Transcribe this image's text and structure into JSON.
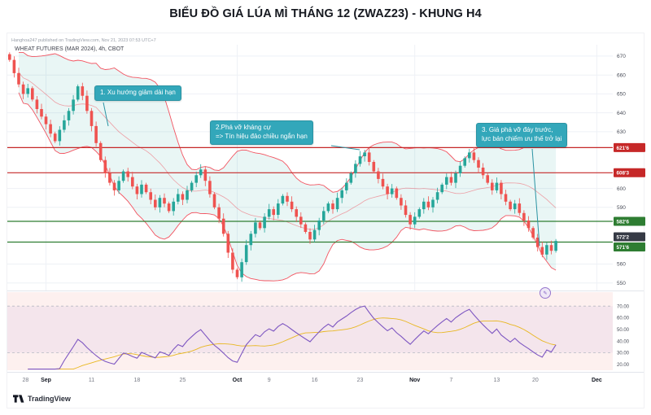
{
  "page": {
    "title": "BIỂU ĐỒ GIÁ LÚA MÌ THÁNG 12 (ZWAZ23) - KHUNG H4"
  },
  "header": {
    "watermark": "Hanghoa247 published on TradingView.com, Nov 21, 2023 07:53 UTC+7",
    "symbol": "WHEAT FUTURES (MAR 2024), 4h, CBOT"
  },
  "footer": {
    "logo_text": "TradingView"
  },
  "annotations": [
    {
      "text_lines": [
        "1. Xu hướng giảm dài hạn"
      ]
    },
    {
      "text_lines": [
        "2.Phá vỡ kháng cự",
        "=> Tín hiệu đảo chiều ngắn hạn"
      ]
    },
    {
      "text_lines": [
        "3. Giá phá vỡ đáy trước,",
        "lực bán chiếm ưu thế trở lại"
      ]
    }
  ],
  "colors": {
    "up": "#26a69a",
    "down": "#ef5350",
    "bb_line": "#f23645",
    "bb_fill": "rgba(38,166,154,0.10)",
    "resistance": "#c62828",
    "support": "#2e7d32",
    "last_price_bg": "#363a45",
    "callout_bg": "#33a7ba",
    "callout_border": "#2b93a3",
    "rsi_line": "#7e57c2",
    "rsi_ma": "#e7b10a",
    "rsi_pane_bg": "#fdf0ef",
    "rsi_band": "rgba(126,87,194,0.07)",
    "grid": "#eef1f6",
    "axis_text": "#4a4e59"
  },
  "chart_data": {
    "type": "candlestick",
    "title": "WHEAT FUTURES (MAR 2024), 4h, CBOT",
    "interval": "4h",
    "closes": [
      668,
      661,
      655,
      650,
      653,
      647,
      642,
      638,
      634,
      629,
      625,
      631,
      636,
      641,
      647,
      654,
      649,
      641,
      633,
      624,
      615,
      608,
      603,
      599,
      604,
      609,
      606,
      601,
      597,
      602,
      598,
      594,
      590,
      595,
      592,
      588,
      593,
      597,
      594,
      599,
      603,
      607,
      610,
      604,
      597,
      590,
      584,
      576,
      566,
      557,
      553,
      561,
      570,
      576,
      582,
      579,
      585,
      589,
      586,
      592,
      596,
      593,
      589,
      585,
      581,
      577,
      573,
      578,
      583,
      588,
      592,
      589,
      595,
      599,
      603,
      608,
      613,
      617,
      619,
      614,
      609,
      605,
      601,
      597,
      600,
      595,
      591,
      586,
      581,
      585,
      589,
      593,
      590,
      594,
      598,
      602,
      606,
      603,
      608,
      612,
      616,
      619,
      615,
      611,
      607,
      603,
      599,
      603,
      597,
      593,
      589,
      592,
      587,
      583,
      579,
      574,
      569,
      565,
      570,
      567,
      572.2
    ],
    "y_axis": {
      "min": 546,
      "max": 676,
      "ticks": [
        670,
        660,
        650,
        640,
        630,
        600,
        590,
        560,
        550
      ]
    },
    "levels": [
      {
        "label": "621'6",
        "value": 621.6,
        "type": "resistance"
      },
      {
        "label": "608'3",
        "value": 608.3,
        "type": "resistance"
      },
      {
        "label": "582'6",
        "value": 582.6,
        "type": "support"
      },
      {
        "label": "571'6",
        "value": 571.6,
        "type": "support"
      }
    ],
    "last_price": {
      "label": "572'2",
      "value": 572.2
    },
    "x_labels": [
      {
        "label": "28",
        "i": 3.5,
        "month": false
      },
      {
        "label": "Sep",
        "i": 8,
        "month": true
      },
      {
        "label": "11",
        "i": 18,
        "month": false
      },
      {
        "label": "18",
        "i": 28,
        "month": false
      },
      {
        "label": "25",
        "i": 38,
        "month": false
      },
      {
        "label": "Oct",
        "i": 50,
        "month": true
      },
      {
        "label": "9",
        "i": 57,
        "month": false
      },
      {
        "label": "16",
        "i": 67,
        "month": false
      },
      {
        "label": "23",
        "i": 77,
        "month": false
      },
      {
        "label": "Nov",
        "i": 89,
        "month": true
      },
      {
        "label": "7",
        "i": 97,
        "month": false
      },
      {
        "label": "13",
        "i": 107,
        "month": false
      },
      {
        "label": "20",
        "i": 115.5,
        "month": false
      },
      {
        "label": "Dec",
        "i": 129,
        "month": true
      }
    ],
    "month_grid_indices": [
      8,
      50,
      89,
      129
    ],
    "slots": 133,
    "indicators": {
      "bollinger": {
        "period": 20,
        "mult": 2
      },
      "rsi": {
        "period": 14,
        "ma_period": 14,
        "ticks": [
          "70.00",
          "60.00",
          "50.00",
          "40.00",
          "30.00",
          "20.00"
        ],
        "tick_values": [
          70,
          60,
          50,
          40,
          30,
          20
        ],
        "levels": [
          70,
          30
        ],
        "range": [
          15,
          82
        ]
      }
    }
  }
}
